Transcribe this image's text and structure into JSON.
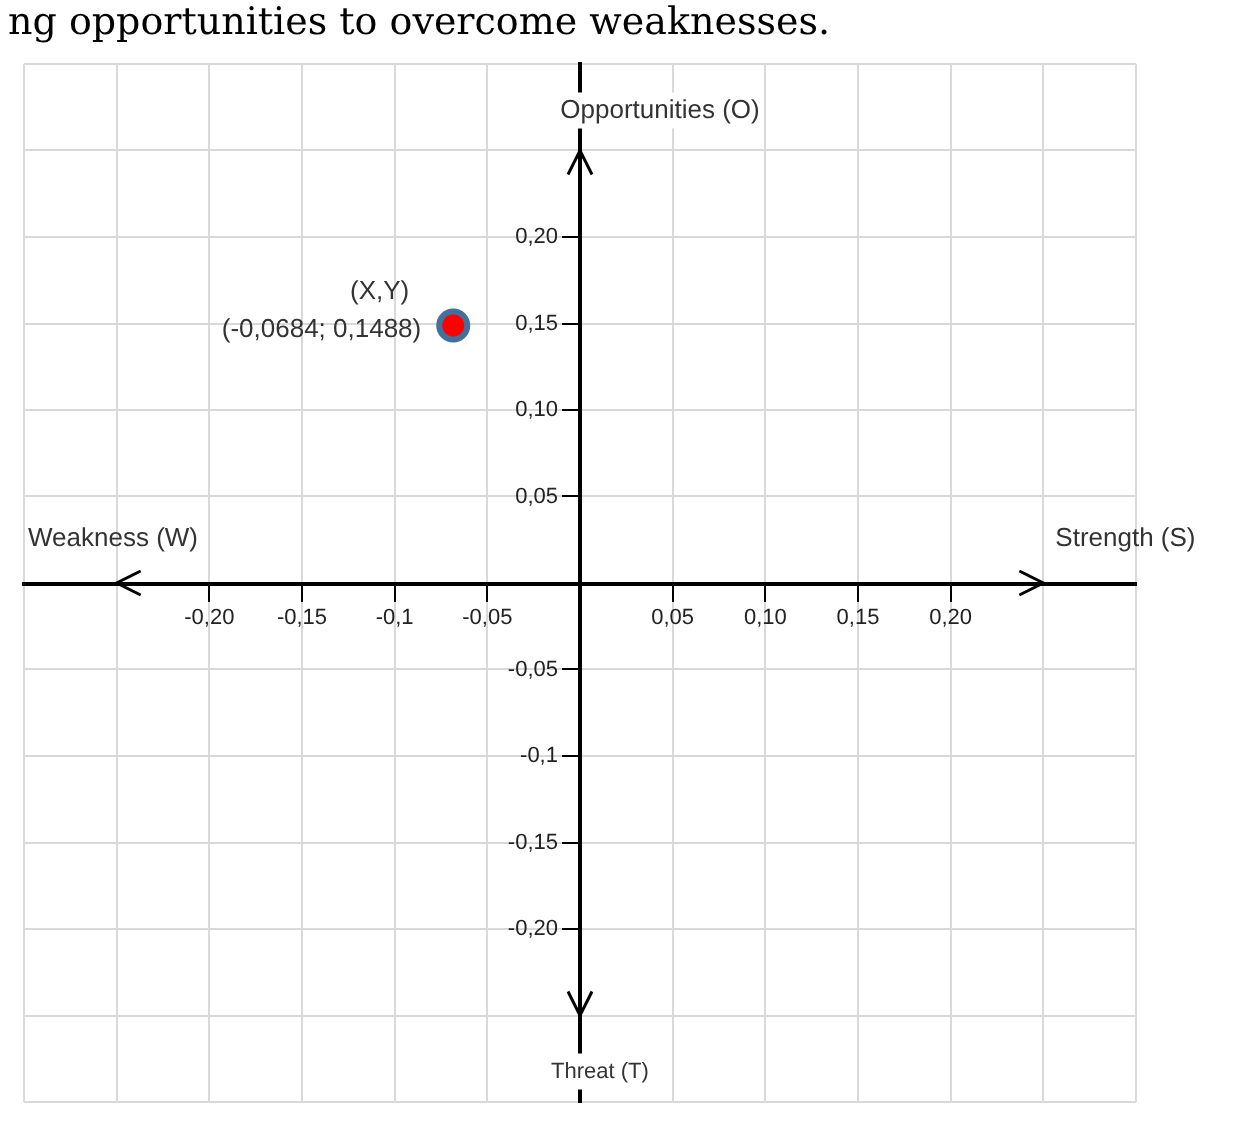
{
  "chart_data": {
    "type": "scatter",
    "title": "ng opportunities to overcome weaknesses.",
    "xlabel": "Strength (S)",
    "ylabel": "Opportunities (O)",
    "annotations": [
      "Weakness (W)",
      "Threat (T)",
      {
        "text": "(X,Y)",
        "x": -0.0684,
        "y": 0.1488
      }
    ],
    "series": [
      {
        "color": "#ff0000",
        "x": [
          -0.0684
        ],
        "values": [
          0.1488
        ],
        "value_labels": [
          "(-0,0684; 0,1488)"
        ]
      }
    ],
    "xlim": [
      -0.3,
      0.3
    ],
    "ylim": [
      -0.3,
      0.3
    ],
    "xticks": [
      {
        "value": -0.3,
        "label": null
      },
      {
        "value": -0.25,
        "label": null
      },
      {
        "value": -0.2,
        "label": "-0,20"
      },
      {
        "value": -0.15,
        "label": "-0,15"
      },
      {
        "value": -0.1,
        "label": "-0,1"
      },
      {
        "value": -0.05,
        "label": "-0,05"
      },
      {
        "value": 0,
        "label": null
      },
      {
        "value": 0.05,
        "label": "0,05"
      },
      {
        "value": 0.1,
        "label": "0,10"
      },
      {
        "value": 0.15,
        "label": "0,15"
      },
      {
        "value": 0.2,
        "label": "0,20"
      },
      {
        "value": 0.25,
        "label": null
      },
      {
        "value": 0.3,
        "label": null
      }
    ],
    "yticks": [
      {
        "value": -0.3,
        "label": null
      },
      {
        "value": -0.25,
        "label": null
      },
      {
        "value": -0.2,
        "label": "-0,20"
      },
      {
        "value": -0.15,
        "label": "-0,15"
      },
      {
        "value": -0.1,
        "label": "-0,1"
      },
      {
        "value": -0.05,
        "label": "-0,05"
      },
      {
        "value": 0,
        "label": null
      },
      {
        "value": 0.05,
        "label": "0,05"
      },
      {
        "value": 0.1,
        "label": "0,10"
      },
      {
        "value": 0.15,
        "label": "0,15"
      },
      {
        "value": 0.2,
        "label": "0,20"
      },
      {
        "value": 0.25,
        "label": null
      },
      {
        "value": 0.3,
        "label": null
      }
    ],
    "grid": true,
    "marker": "circle",
    "legend": false
  }
}
